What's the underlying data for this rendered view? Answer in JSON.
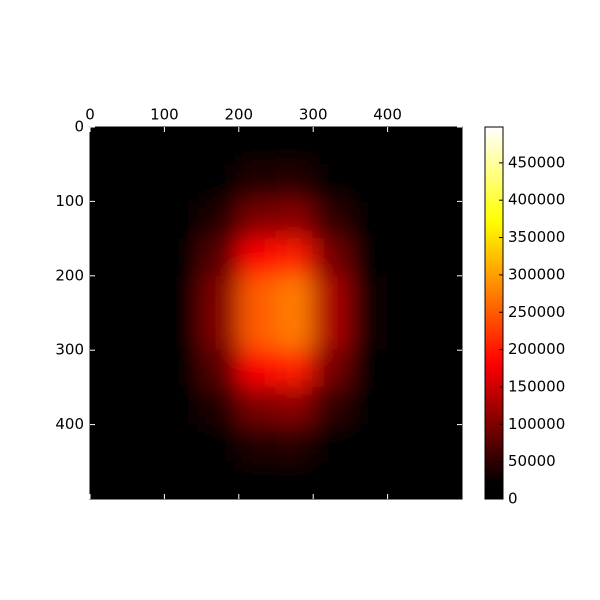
{
  "chart_data": {
    "type": "heatmap",
    "colormap": "hot",
    "xlim": [
      0,
      500
    ],
    "ylim": [
      500,
      0
    ],
    "xticks": [
      0,
      100,
      200,
      300,
      400
    ],
    "yticks": [
      0,
      100,
      200,
      300,
      400
    ],
    "clim": [
      0,
      498000
    ],
    "cticks": [
      0,
      50000,
      100000,
      150000,
      200000,
      250000,
      300000,
      350000,
      400000,
      450000
    ],
    "values": [
      [
        2000,
        2000,
        3000,
        7000,
        13000,
        14000,
        8000,
        3000,
        2000,
        2000
      ],
      [
        2000,
        2000,
        5000,
        18000,
        41000,
        44000,
        22000,
        6000,
        2000,
        2000
      ],
      [
        2000,
        3000,
        9000,
        42000,
        100000,
        109000,
        52000,
        13000,
        3000,
        2000
      ],
      [
        2000,
        3000,
        15000,
        77000,
        185000,
        202000,
        96000,
        22000,
        4000,
        2000
      ],
      [
        2000,
        3000,
        20000,
        103000,
        250000,
        273000,
        129000,
        29000,
        4000,
        2000
      ],
      [
        2000,
        3000,
        20000,
        103000,
        250000,
        273000,
        129000,
        29000,
        4000,
        2000
      ],
      [
        2000,
        3000,
        15000,
        77000,
        185000,
        202000,
        96000,
        22000,
        4000,
        2000
      ],
      [
        2000,
        3000,
        9000,
        42000,
        100000,
        109000,
        52000,
        13000,
        3000,
        2000
      ],
      [
        2000,
        2000,
        5000,
        18000,
        41000,
        44000,
        22000,
        6000,
        2000,
        2000
      ],
      [
        2000,
        2000,
        3000,
        7000,
        13000,
        14000,
        8000,
        3000,
        2000,
        2000
      ]
    ]
  }
}
